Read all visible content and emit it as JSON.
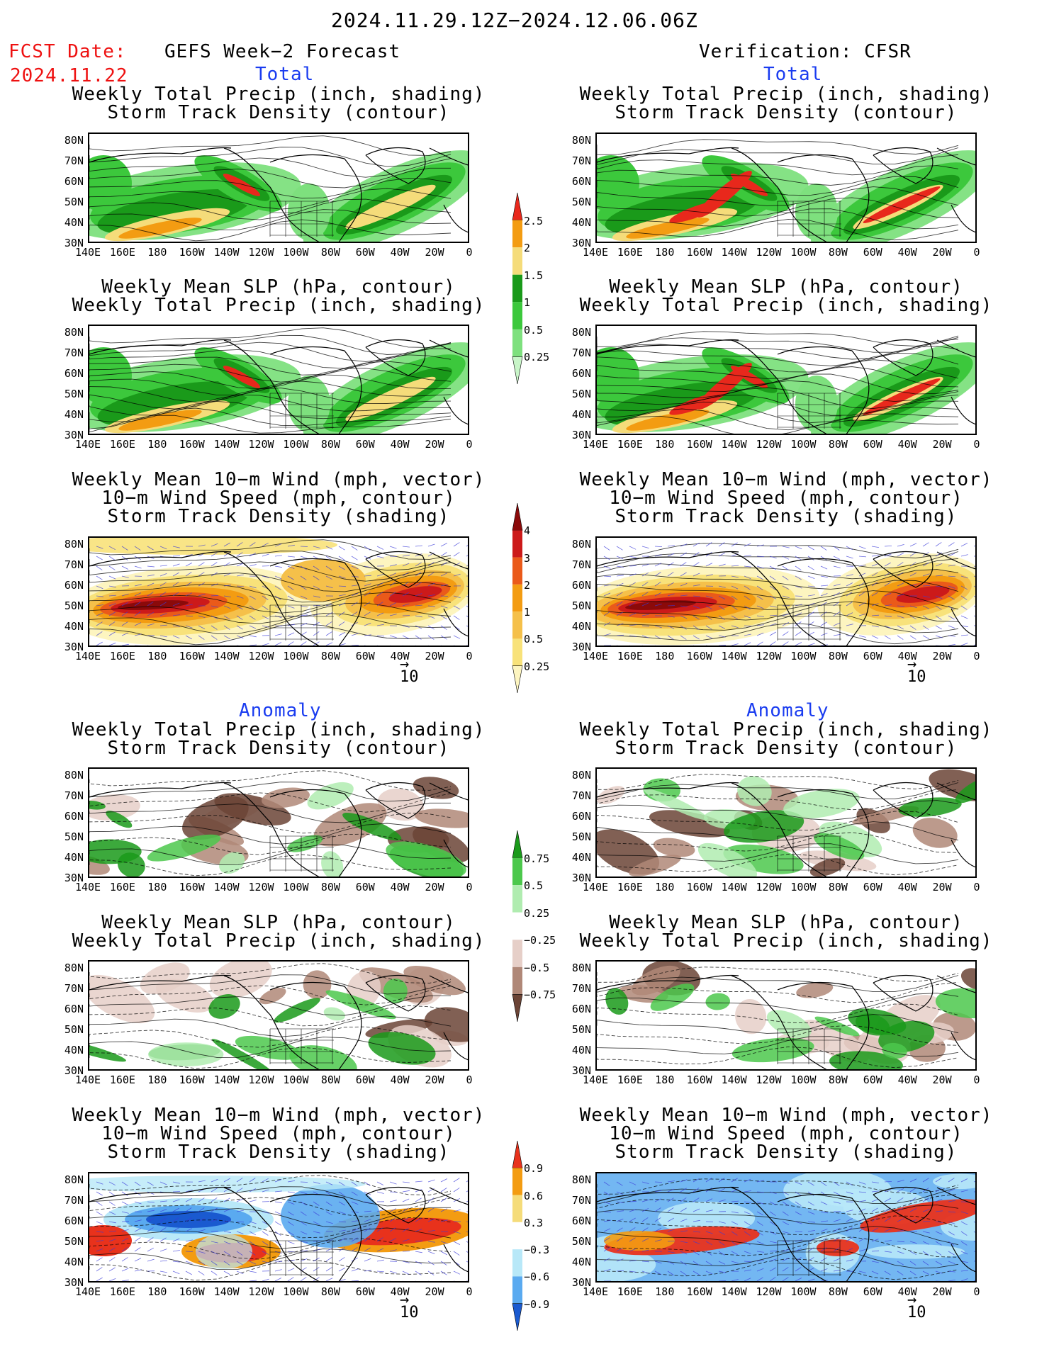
{
  "header": {
    "date_range": "2024.11.29.12Z−2024.12.06.06Z",
    "fcst_label": "FCST Date:",
    "fcst_date": "2024.11.22",
    "left_title": "GEFS Week−2 Forecast",
    "right_title": "Verification: CFSR"
  },
  "sections": {
    "total": "Total",
    "anomaly": "Anomaly"
  },
  "panel_titles": {
    "precip_storm": [
      "Weekly Total Precip (inch, shading)",
      "Storm Track Density (contour)"
    ],
    "slp_precip": [
      "Weekly Mean SLP (hPa, contour)",
      "Weekly Total Precip (inch, shading)"
    ],
    "wind_storm": [
      "Weekly Mean 10−m Wind (mph, vector)",
      "10−m Wind Speed (mph, contour)",
      "Storm Track Density (shading)"
    ]
  },
  "axes": {
    "lat_labels": [
      "80N",
      "70N",
      "60N",
      "50N",
      "40N",
      "30N"
    ],
    "lon_labels": [
      "140E",
      "160E",
      "180",
      "160W",
      "140W",
      "120W",
      "100W",
      "80W",
      "60W",
      "40W",
      "20W",
      "0"
    ]
  },
  "vector_ref": "10",
  "colorbars": {
    "precip_total": {
      "labels": [
        "2.5",
        "2",
        "1.5",
        "1",
        "0.5",
        "0.25"
      ],
      "colors": [
        "#e8281c",
        "#f39c12",
        "#f5dc7a",
        "#1a9a1a",
        "#3cc83c",
        "#7ee07e",
        "#c8f5c8"
      ]
    },
    "storm_total": {
      "labels": [
        "4",
        "3",
        "2",
        "1",
        "0.5",
        "0.25"
      ],
      "colors": [
        "#8b0a0a",
        "#cc1a1a",
        "#ea5a1a",
        "#f39c12",
        "#f5c04a",
        "#f8e27a",
        "#fdf5c0"
      ]
    },
    "precip_anom": {
      "labels": [
        "0.75",
        "0.5",
        "0.25",
        "−0.25",
        "−0.5",
        "−0.75"
      ],
      "colors": [
        "#1a9a1a",
        "#4cc84c",
        "#b0ecb0",
        "#ffffff",
        "#e6cfc8",
        "#b08878",
        "#6b4436"
      ]
    },
    "storm_anom": {
      "labels": [
        "0.9",
        "0.6",
        "0.3",
        "−0.3",
        "−0.6",
        "−0.9"
      ],
      "colors": [
        "#e8321c",
        "#f39c12",
        "#f5dc7a",
        "#ffffff",
        "#b8e8f8",
        "#5aaaf0",
        "#1a5ad0"
      ]
    }
  }
}
